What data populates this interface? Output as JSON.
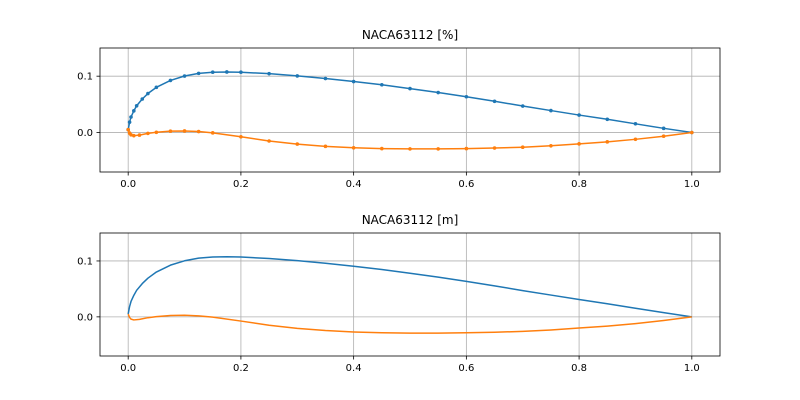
{
  "figure": {
    "background": "#ffffff"
  },
  "chart_data": [
    {
      "type": "line",
      "title": "NACA63112 [%]",
      "markers": true,
      "grid": true,
      "xlim": [
        -0.05,
        1.05
      ],
      "ylim": [
        -0.07,
        0.15
      ],
      "xticks": [
        {
          "value": 0.0,
          "label": "0.0"
        },
        {
          "value": 0.2,
          "label": "0.2"
        },
        {
          "value": 0.4,
          "label": "0.4"
        },
        {
          "value": 0.6,
          "label": "0.6"
        },
        {
          "value": 0.8,
          "label": "0.8"
        },
        {
          "value": 1.0,
          "label": "1.0"
        }
      ],
      "yticks": [
        {
          "value": 0.0,
          "label": "0.0"
        },
        {
          "value": 0.1,
          "label": "0.1"
        }
      ],
      "series": [
        {
          "color": "#1f77b4",
          "x": [
            1.0,
            0.95,
            0.9,
            0.85,
            0.8,
            0.75,
            0.7,
            0.65,
            0.6,
            0.55,
            0.5,
            0.45,
            0.4,
            0.35,
            0.3,
            0.25,
            0.2,
            0.175,
            0.15,
            0.125,
            0.1,
            0.075,
            0.05,
            0.035,
            0.025,
            0.015,
            0.01,
            0.005,
            0.0025,
            0.0
          ],
          "y": [
            0.0,
            0.0075,
            0.0155,
            0.0235,
            0.031,
            0.039,
            0.047,
            0.0555,
            0.0635,
            0.071,
            0.078,
            0.0848,
            0.0905,
            0.0958,
            0.1005,
            0.1045,
            0.107,
            0.1075,
            0.107,
            0.105,
            0.1003,
            0.0925,
            0.0802,
            0.0692,
            0.0595,
            0.0475,
            0.0385,
            0.0275,
            0.0185,
            0.005
          ]
        },
        {
          "color": "#ff7f0e",
          "x": [
            0.0,
            0.0025,
            0.005,
            0.01,
            0.02,
            0.035,
            0.05,
            0.075,
            0.1,
            0.125,
            0.15,
            0.2,
            0.25,
            0.3,
            0.35,
            0.4,
            0.45,
            0.5,
            0.55,
            0.6,
            0.65,
            0.7,
            0.75,
            0.8,
            0.85,
            0.9,
            0.95,
            1.0
          ],
          "y": [
            0.005,
            -0.001,
            -0.004,
            -0.0055,
            -0.0045,
            -0.0015,
            0.0005,
            0.0025,
            0.0028,
            0.0018,
            -0.0005,
            -0.0075,
            -0.015,
            -0.0205,
            -0.0245,
            -0.027,
            -0.0285,
            -0.029,
            -0.029,
            -0.0285,
            -0.0275,
            -0.026,
            -0.0235,
            -0.02,
            -0.0165,
            -0.012,
            -0.0065,
            0.0
          ]
        }
      ]
    },
    {
      "type": "line",
      "title": "NACA63112 [m]",
      "markers": false,
      "grid": true,
      "xlim": [
        -0.05,
        1.05
      ],
      "ylim": [
        -0.07,
        0.15
      ],
      "xticks": [
        {
          "value": 0.0,
          "label": "0.0"
        },
        {
          "value": 0.2,
          "label": "0.2"
        },
        {
          "value": 0.4,
          "label": "0.4"
        },
        {
          "value": 0.6,
          "label": "0.6"
        },
        {
          "value": 0.8,
          "label": "0.8"
        },
        {
          "value": 1.0,
          "label": "1.0"
        }
      ],
      "yticks": [
        {
          "value": 0.0,
          "label": "0.0"
        },
        {
          "value": 0.1,
          "label": "0.1"
        }
      ],
      "series": [
        {
          "color": "#1f77b4",
          "x": [
            1.0,
            0.95,
            0.9,
            0.85,
            0.8,
            0.75,
            0.7,
            0.65,
            0.6,
            0.55,
            0.5,
            0.45,
            0.4,
            0.35,
            0.3,
            0.25,
            0.2,
            0.175,
            0.15,
            0.125,
            0.1,
            0.075,
            0.05,
            0.035,
            0.025,
            0.015,
            0.01,
            0.005,
            0.0025,
            0.0
          ],
          "y": [
            0.0,
            0.0075,
            0.0155,
            0.0235,
            0.031,
            0.039,
            0.047,
            0.0555,
            0.0635,
            0.071,
            0.078,
            0.0848,
            0.0905,
            0.0958,
            0.1005,
            0.1045,
            0.107,
            0.1075,
            0.107,
            0.105,
            0.1003,
            0.0925,
            0.0802,
            0.0692,
            0.0595,
            0.0475,
            0.0385,
            0.0275,
            0.0185,
            0.005
          ]
        },
        {
          "color": "#ff7f0e",
          "x": [
            0.0,
            0.0025,
            0.005,
            0.01,
            0.02,
            0.035,
            0.05,
            0.075,
            0.1,
            0.125,
            0.15,
            0.2,
            0.25,
            0.3,
            0.35,
            0.4,
            0.45,
            0.5,
            0.55,
            0.6,
            0.65,
            0.7,
            0.75,
            0.8,
            0.85,
            0.9,
            0.95,
            1.0
          ],
          "y": [
            0.005,
            -0.001,
            -0.004,
            -0.0055,
            -0.0045,
            -0.0015,
            0.0005,
            0.0025,
            0.0028,
            0.0018,
            -0.0005,
            -0.0075,
            -0.015,
            -0.0205,
            -0.0245,
            -0.027,
            -0.0285,
            -0.029,
            -0.029,
            -0.0285,
            -0.0275,
            -0.026,
            -0.0235,
            -0.02,
            -0.0165,
            -0.012,
            -0.0065,
            0.0
          ]
        }
      ]
    }
  ]
}
